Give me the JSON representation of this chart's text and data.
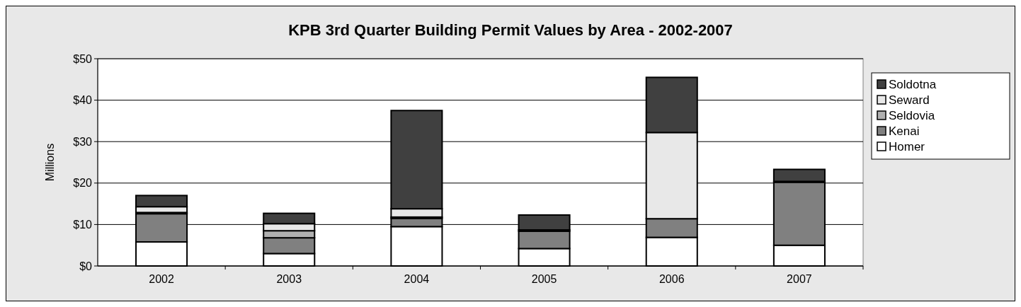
{
  "chart_data": {
    "type": "bar",
    "title": "KPB 3rd Quarter Building Permit Values by Area - 2002-2007",
    "ylabel": "Millions",
    "categories": [
      "2002",
      "2003",
      "2004",
      "2005",
      "2006",
      "2007"
    ],
    "stacked": true,
    "ylim": [
      0,
      50
    ],
    "yticks": [
      {
        "value": 0,
        "label": "$0"
      },
      {
        "value": 10,
        "label": "$10"
      },
      {
        "value": 20,
        "label": "$20"
      },
      {
        "value": 30,
        "label": "$30"
      },
      {
        "value": 40,
        "label": "$40"
      },
      {
        "value": 50,
        "label": "$50"
      }
    ],
    "grid": "y",
    "legend": "right",
    "series": [
      {
        "name": "Homer",
        "color": "#ffffff",
        "values": [
          5.8,
          3.0,
          9.5,
          4.2,
          6.9,
          5.0
        ]
      },
      {
        "name": "Kenai",
        "color": "#808080",
        "values": [
          6.8,
          3.8,
          2.0,
          4.2,
          4.5,
          15.2
        ]
      },
      {
        "name": "Seldovia",
        "color": "#b0b0b0",
        "values": [
          0.3,
          1.7,
          0.3,
          null,
          0,
          0.2
        ]
      },
      {
        "name": "Seward",
        "color": "#e8e8e8",
        "values": [
          1.4,
          1.7,
          2.0,
          0.3,
          20.8,
          null
        ]
      },
      {
        "name": "Soldotna",
        "color": "#404040",
        "values": [
          2.7,
          2.5,
          23.7,
          3.6,
          13.3,
          2.9
        ]
      }
    ]
  }
}
